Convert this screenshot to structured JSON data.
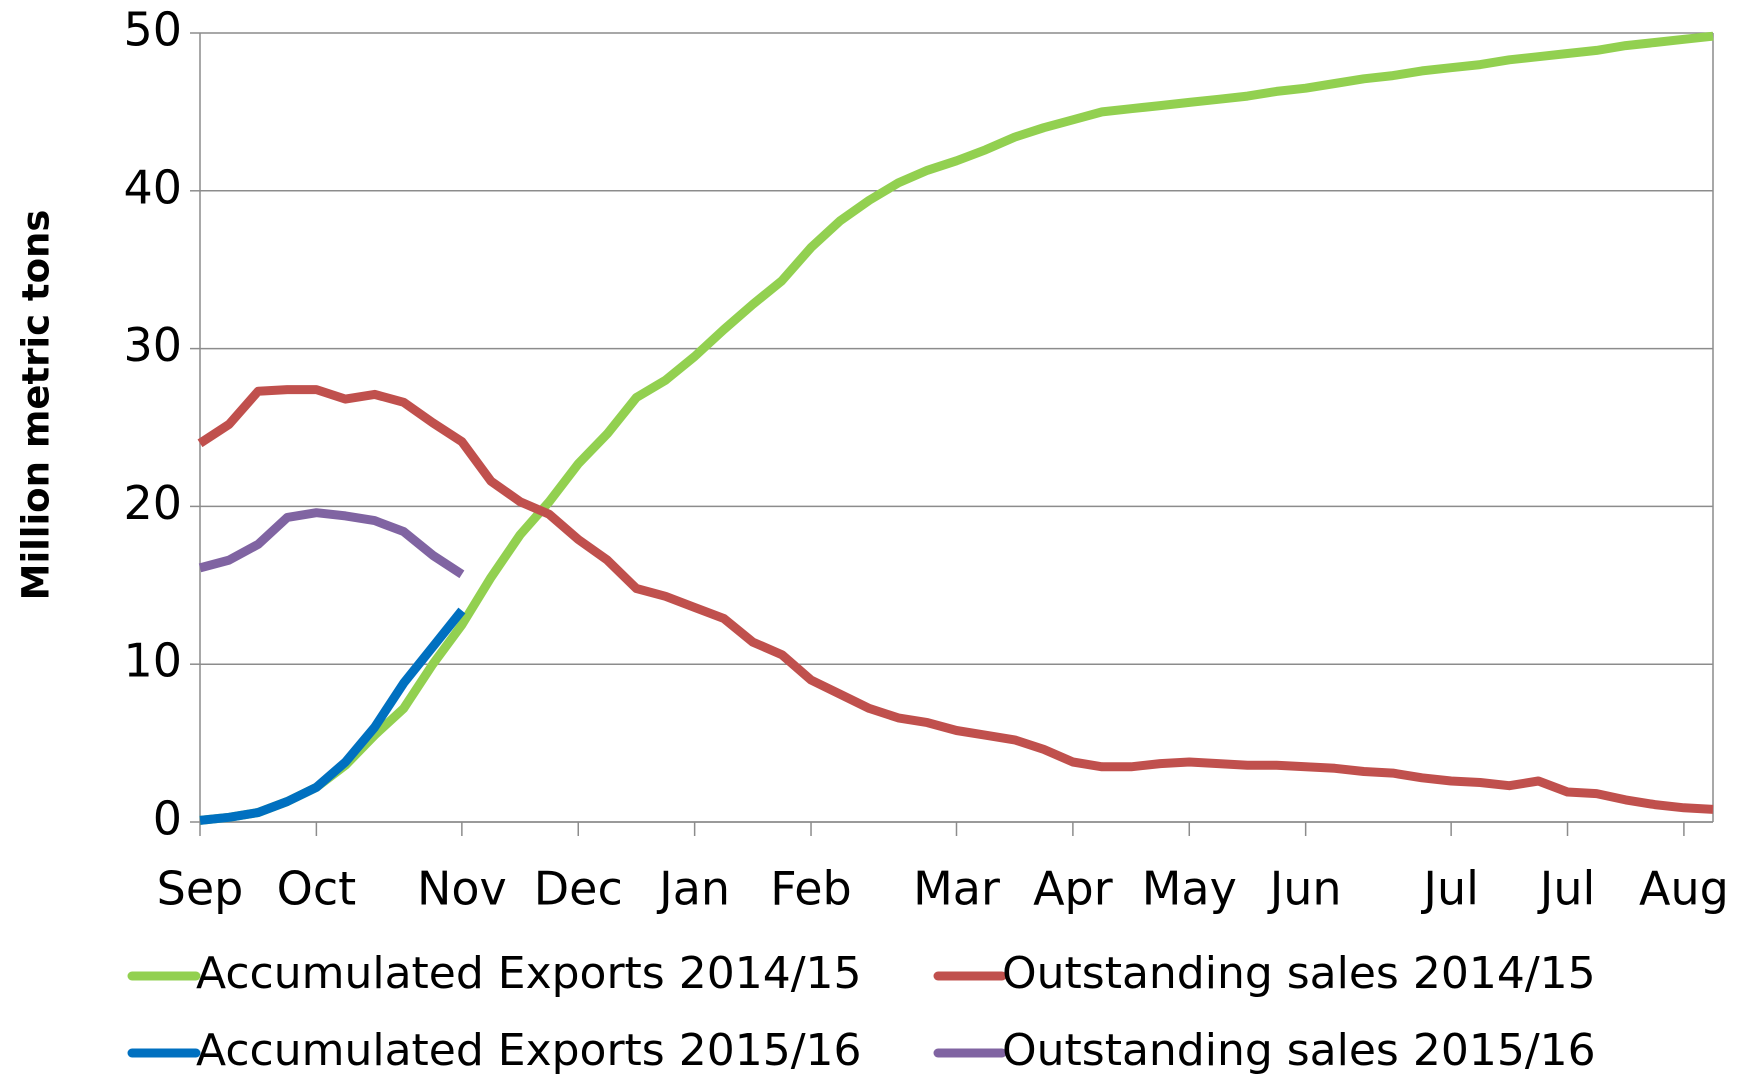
{
  "chart_data": {
    "type": "line",
    "y_label": "Million metric tons",
    "categories": [
      "Sep",
      null,
      null,
      null,
      "Oct",
      null,
      null,
      null,
      null,
      "Nov",
      null,
      null,
      null,
      "Dec",
      null,
      null,
      null,
      "Jan",
      null,
      null,
      null,
      "Feb",
      null,
      null,
      null,
      null,
      "Mar",
      null,
      null,
      null,
      "Apr",
      null,
      null,
      null,
      "May",
      null,
      null,
      null,
      "Jun",
      null,
      null,
      null,
      null,
      "Jul",
      null,
      null,
      null,
      "Jul",
      null,
      null,
      null,
      "Aug",
      null
    ],
    "ylim": [
      0,
      50
    ],
    "yticks": [
      0,
      10,
      20,
      30,
      40,
      50
    ],
    "grid": true,
    "series": [
      {
        "name": "Accumulated Exports 2014/15",
        "color": "#92d050",
        "values": [
          0.1,
          0.3,
          0.6,
          1.3,
          2.2,
          3.6,
          5.5,
          7.2,
          10.0,
          12.5,
          15.5,
          18.2,
          20.3,
          22.7,
          24.6,
          26.9,
          28.0,
          29.5,
          31.2,
          32.8,
          34.3,
          36.4,
          38.1,
          39.4,
          40.5,
          41.3,
          41.9,
          42.6,
          43.4,
          44.0,
          44.5,
          45.0,
          45.2,
          45.4,
          45.6,
          45.8,
          46.0,
          46.3,
          46.5,
          46.8,
          47.1,
          47.3,
          47.6,
          47.8,
          48.0,
          48.3,
          48.5,
          48.7,
          48.9,
          49.2,
          49.4,
          49.6,
          49.8
        ]
      },
      {
        "name": "Outstanding sales 2014/15",
        "color": "#c0504d",
        "values": [
          24.0,
          25.2,
          27.3,
          27.4,
          27.4,
          26.8,
          27.1,
          26.6,
          25.3,
          24.1,
          21.6,
          20.3,
          19.5,
          17.9,
          16.6,
          14.8,
          14.3,
          13.6,
          12.9,
          11.4,
          10.6,
          9.0,
          8.1,
          7.2,
          6.6,
          6.3,
          5.8,
          5.5,
          5.2,
          4.6,
          3.8,
          3.5,
          3.5,
          3.7,
          3.8,
          3.7,
          3.6,
          3.6,
          3.5,
          3.4,
          3.2,
          3.1,
          2.8,
          2.6,
          2.5,
          2.3,
          2.6,
          1.9,
          1.8,
          1.4,
          1.1,
          0.9,
          0.8
        ]
      },
      {
        "name": "Accumulated Exports 2015/16",
        "color": "#0070c0",
        "values": [
          0.1,
          0.3,
          0.6,
          1.3,
          2.2,
          3.8,
          6.0,
          8.8,
          11.1,
          13.4,
          null,
          null,
          null,
          null,
          null,
          null,
          null,
          null,
          null,
          null,
          null,
          null,
          null,
          null,
          null,
          null,
          null,
          null,
          null,
          null,
          null,
          null,
          null,
          null,
          null,
          null,
          null,
          null,
          null,
          null,
          null,
          null,
          null,
          null,
          null,
          null,
          null,
          null,
          null,
          null,
          null,
          null,
          null
        ]
      },
      {
        "name": "Outstanding sales 2015/16",
        "color": "#8064a2",
        "values": [
          16.1,
          16.6,
          17.6,
          19.3,
          19.6,
          19.4,
          19.1,
          18.4,
          16.9,
          15.7,
          null,
          null,
          null,
          null,
          null,
          null,
          null,
          null,
          null,
          null,
          null,
          null,
          null,
          null,
          null,
          null,
          null,
          null,
          null,
          null,
          null,
          null,
          null,
          null,
          null,
          null,
          null,
          null,
          null,
          null,
          null,
          null,
          null,
          null,
          null,
          null,
          null,
          null,
          null,
          null,
          null,
          null,
          null
        ]
      }
    ]
  }
}
